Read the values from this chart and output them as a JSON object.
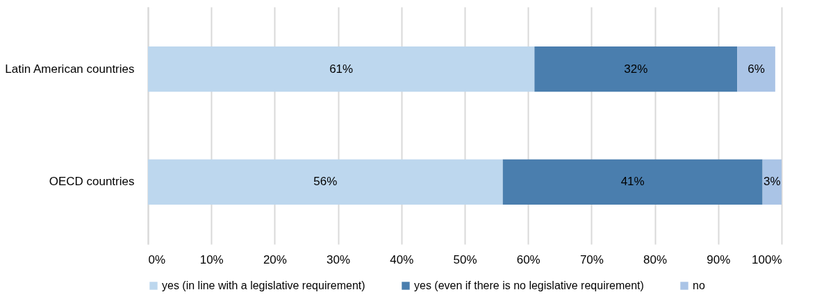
{
  "chart_data": {
    "type": "bar",
    "orientation": "horizontal",
    "stacked": true,
    "categories": [
      "Latin American countries",
      "OECD countries"
    ],
    "series": [
      {
        "name": "yes (in line with a legislative requirement)",
        "color": "#bdd7ee",
        "values": [
          61,
          56
        ],
        "value_labels": [
          "61%",
          "56%"
        ]
      },
      {
        "name": "yes (even if there is no legislative requirement)",
        "color": "#4a7eae",
        "values": [
          32,
          41
        ],
        "value_labels": [
          "32%",
          "41%"
        ]
      },
      {
        "name": "no",
        "color": "#aac4e6",
        "values": [
          6,
          3
        ],
        "value_labels": [
          "6%",
          "3%"
        ]
      }
    ],
    "xlim": [
      0,
      100
    ],
    "xticks": [
      {
        "value": 0,
        "label": "0%"
      },
      {
        "value": 10,
        "label": "10%"
      },
      {
        "value": 20,
        "label": "20%"
      },
      {
        "value": 30,
        "label": "30%"
      },
      {
        "value": 40,
        "label": "40%"
      },
      {
        "value": 50,
        "label": "50%"
      },
      {
        "value": 60,
        "label": "60%"
      },
      {
        "value": 70,
        "label": "70%"
      },
      {
        "value": 80,
        "label": "80%"
      },
      {
        "value": 90,
        "label": "90%"
      },
      {
        "value": 100,
        "label": "100%"
      }
    ],
    "grid": "x",
    "legend": "bottom"
  }
}
